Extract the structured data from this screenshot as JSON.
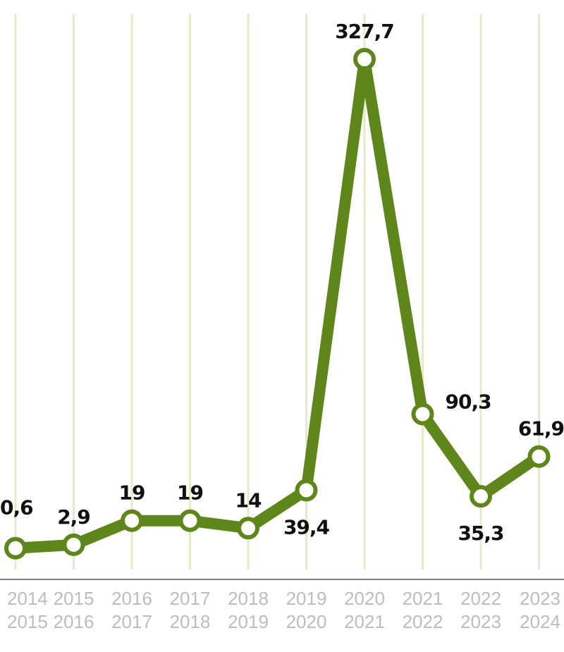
{
  "colors": {
    "series": "#5e861a",
    "grid": "#e2ecc6",
    "tick_text": "#bdbdbd",
    "label_text": "#111111"
  },
  "chart_data": {
    "type": "line",
    "title": "",
    "xlabel": "",
    "ylabel": "",
    "grid": true,
    "categories": [
      [
        "2014",
        "2015"
      ],
      [
        "2015",
        "2016"
      ],
      [
        "2016",
        "2017"
      ],
      [
        "2017",
        "2018"
      ],
      [
        "2018",
        "2019"
      ],
      [
        "2019",
        "2020"
      ],
      [
        "2020",
        "2021"
      ],
      [
        "2021",
        "2022"
      ],
      [
        "2022",
        "2023"
      ],
      [
        "2023",
        "2024"
      ]
    ],
    "values": [
      0.6,
      2.9,
      19,
      19,
      14,
      39.4,
      327.7,
      90.3,
      35.3,
      61.9
    ],
    "value_labels": [
      "0,6",
      "2,9",
      "19",
      "19",
      "14",
      "39,4",
      "327,7",
      "90,3",
      "35,3",
      "61,9"
    ],
    "ylim": [
      0,
      327.7
    ]
  }
}
